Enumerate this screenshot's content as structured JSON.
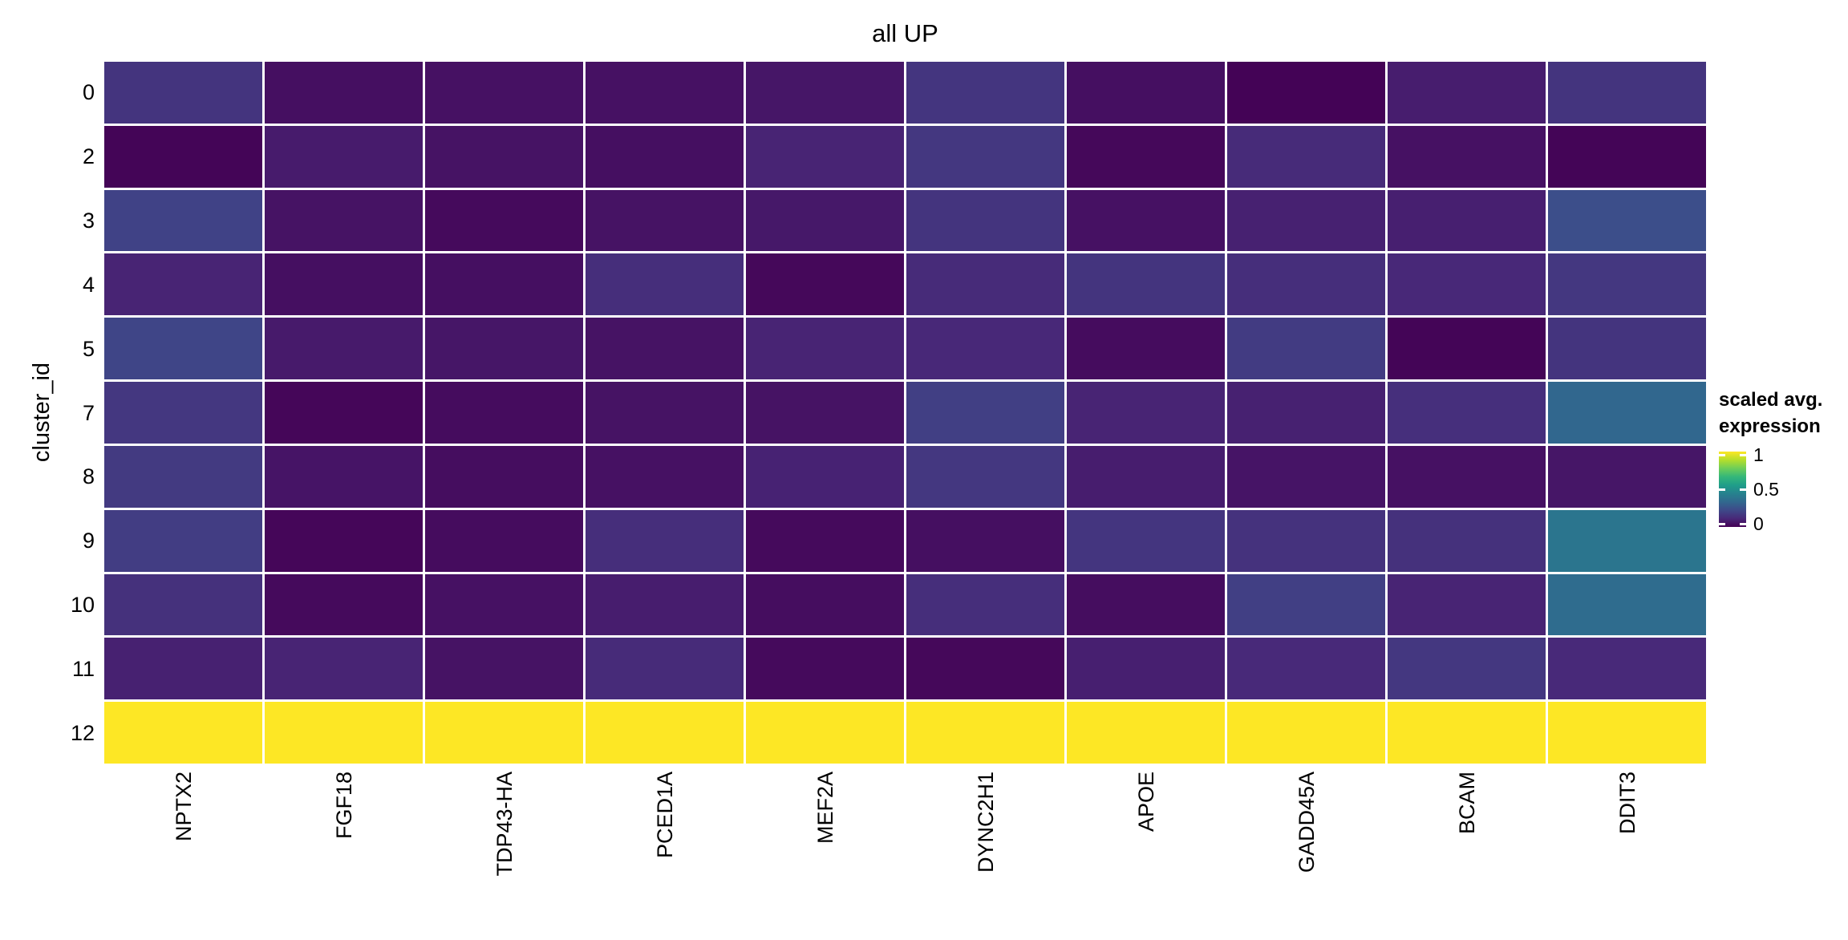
{
  "title": "all UP",
  "y_axis": {
    "title": "cluster_id"
  },
  "legend": {
    "title_lines": [
      "scaled avg.",
      "expression"
    ],
    "ticks": [
      {
        "label": "1",
        "value": 1
      },
      {
        "label": "0.5",
        "value": 0.5
      },
      {
        "label": "0",
        "value": 0
      }
    ]
  },
  "colors": {
    "background": "#ffffff",
    "grid_lines": "#ffffff",
    "text": "#000000"
  },
  "chart_data": {
    "type": "heatmap",
    "title": "all UP",
    "xlabel": "",
    "ylabel": "cluster_id",
    "value_name": "scaled avg. expression",
    "value_range": [
      0,
      1
    ],
    "grid": false,
    "legend_position": "right",
    "colormap": "viridis",
    "colormap_anchors": [
      [
        0.0,
        "#440154"
      ],
      [
        0.111,
        "#482878"
      ],
      [
        0.222,
        "#3e4989"
      ],
      [
        0.333,
        "#31688e"
      ],
      [
        0.444,
        "#26828e"
      ],
      [
        0.556,
        "#1f9e89"
      ],
      [
        0.667,
        "#35b779"
      ],
      [
        0.778,
        "#6ece58"
      ],
      [
        0.889,
        "#b5de2b"
      ],
      [
        1.0,
        "#fde725"
      ]
    ],
    "columns": [
      "NPTX2",
      "FGF18",
      "TDP43-HA",
      "PCED1A",
      "MEF2A",
      "DYNC2H1",
      "APOE",
      "GADD45A",
      "BCAM",
      "DDIT3"
    ],
    "rows": [
      "0",
      "2",
      "3",
      "4",
      "5",
      "7",
      "8",
      "9",
      "10",
      "11",
      "12"
    ],
    "values": [
      [
        0.15,
        0.04,
        0.045,
        0.045,
        0.06,
        0.155,
        0.04,
        0.005,
        0.08,
        0.15
      ],
      [
        0.01,
        0.075,
        0.05,
        0.04,
        0.1,
        0.16,
        0.02,
        0.12,
        0.045,
        0.01
      ],
      [
        0.2,
        0.05,
        0.025,
        0.05,
        0.065,
        0.15,
        0.045,
        0.09,
        0.085,
        0.24
      ],
      [
        0.1,
        0.04,
        0.04,
        0.13,
        0.02,
        0.12,
        0.15,
        0.13,
        0.11,
        0.16
      ],
      [
        0.21,
        0.07,
        0.06,
        0.05,
        0.1,
        0.11,
        0.03,
        0.175,
        0.01,
        0.15
      ],
      [
        0.16,
        0.015,
        0.03,
        0.05,
        0.05,
        0.19,
        0.1,
        0.09,
        0.135,
        0.33
      ],
      [
        0.17,
        0.055,
        0.035,
        0.045,
        0.095,
        0.16,
        0.08,
        0.055,
        0.045,
        0.06
      ],
      [
        0.18,
        0.015,
        0.03,
        0.13,
        0.025,
        0.04,
        0.155,
        0.145,
        0.14,
        0.39
      ],
      [
        0.14,
        0.025,
        0.045,
        0.08,
        0.035,
        0.13,
        0.035,
        0.19,
        0.1,
        0.35
      ],
      [
        0.09,
        0.1,
        0.05,
        0.12,
        0.025,
        0.02,
        0.085,
        0.115,
        0.16,
        0.115
      ],
      [
        1.0,
        1.0,
        1.0,
        1.0,
        1.0,
        1.0,
        1.0,
        1.0,
        1.0,
        1.0
      ]
    ]
  }
}
